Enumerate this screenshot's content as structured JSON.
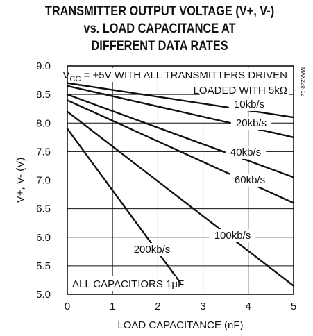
{
  "chart_data": {
    "type": "line",
    "title_lines": [
      "TRANSMITTER OUTPUT VOLTAGE (V+, V-)",
      "vs. LOAD CAPACITANCE AT",
      "DIFFERENT DATA RATES"
    ],
    "xlabel": "LOAD CAPACITANCE (nF)",
    "ylabel": "V+, V- (V)",
    "xlim": [
      0,
      5
    ],
    "ylim": [
      5.0,
      9.0
    ],
    "xticks": [
      "0",
      "1",
      "2",
      "3",
      "4",
      "5"
    ],
    "yticks": [
      "5.0",
      "5.5",
      "6.0",
      "6.5",
      "7.0",
      "7.5",
      "8.0",
      "8.5",
      "9.0"
    ],
    "grid": true,
    "series": [
      {
        "name": "10kb/s",
        "x": [
          0,
          5
        ],
        "y": [
          8.7,
          8.1
        ]
      },
      {
        "name": "20kb/s",
        "x": [
          0,
          5
        ],
        "y": [
          8.65,
          7.75
        ]
      },
      {
        "name": "40kb/s",
        "x": [
          0,
          5
        ],
        "y": [
          8.5,
          7.05
        ]
      },
      {
        "name": "60kb/s",
        "x": [
          0,
          5
        ],
        "y": [
          8.4,
          6.6
        ]
      },
      {
        "name": "100kb/s",
        "x": [
          0,
          5
        ],
        "y": [
          8.2,
          5.15
        ]
      },
      {
        "name": "200kb/s",
        "x": [
          0,
          2.5
        ],
        "y": [
          7.9,
          5.2
        ]
      }
    ],
    "annotations": {
      "condition_prefix": "V",
      "condition_sub": "CC",
      "condition_rest": " = +5V WITH ALL TRANSMITTERS DRIVEN",
      "condition_line2": "LOADED WITH 5kΩ",
      "capacitors": "ALL CAPACITIORS 1μF",
      "part_number": "MAX220-12"
    }
  }
}
